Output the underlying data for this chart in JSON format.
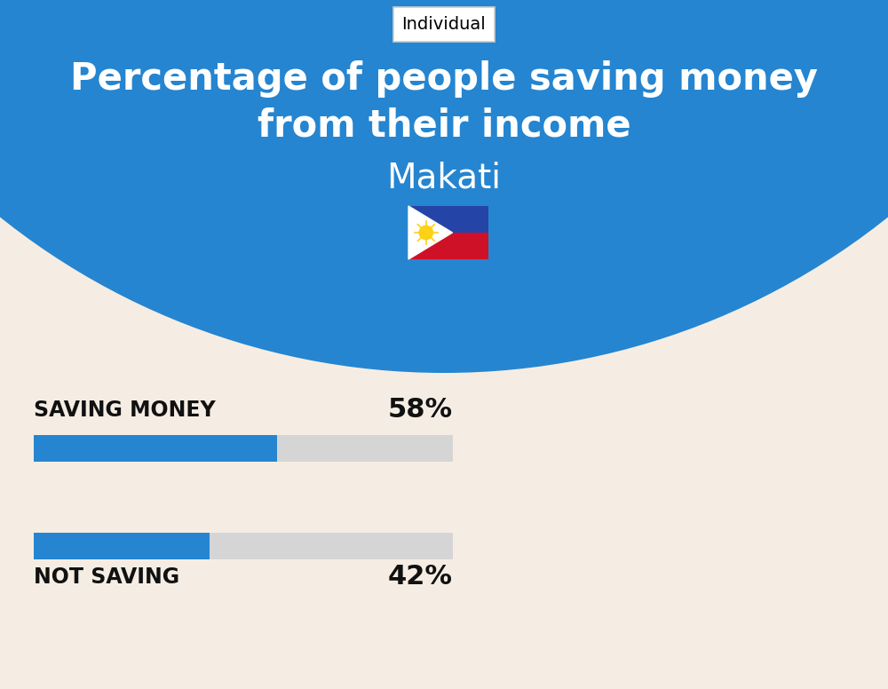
{
  "title_line1": "Percentage of people saving money",
  "title_line2": "from their income",
  "subtitle": "Makati",
  "tab_label": "Individual",
  "background_color": "#F5EDE3",
  "header_bg_color": "#2585D0",
  "header_text_color": "#FFFFFF",
  "bar_color": "#2585D0",
  "bar_bg_color": "#D5D5D5",
  "categories": [
    "SAVING MONEY",
    "NOT SAVING"
  ],
  "values": [
    58,
    42
  ],
  "label_color": "#111111",
  "value_color": "#111111",
  "title_fontsize": 30,
  "subtitle_fontsize": 28,
  "label_fontsize": 17,
  "value_fontsize": 22,
  "tab_fontsize": 14,
  "fig_width": 10.0,
  "fig_height": 7.76,
  "dpi": 100
}
